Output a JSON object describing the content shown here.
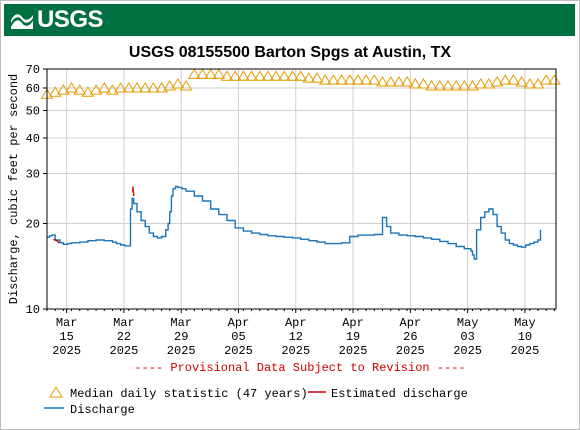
{
  "header": {
    "logo_text": "USGS"
  },
  "chart_data": {
    "type": "line",
    "title": "USGS 08155500 Barton Spgs at Austin, TX",
    "ylabel": "Discharge, cubic feet per second",
    "yscale": "log",
    "ylim": [
      10,
      70
    ],
    "yticks": [
      10,
      20,
      30,
      40,
      50,
      60,
      70
    ],
    "xlim": [
      0,
      62.2
    ],
    "x_ticks": [
      {
        "day": 2.4,
        "label": [
          "Mar",
          "15",
          "2025"
        ]
      },
      {
        "day": 9.4,
        "label": [
          "Mar",
          "22",
          "2025"
        ]
      },
      {
        "day": 16.4,
        "label": [
          "Mar",
          "29",
          "2025"
        ]
      },
      {
        "day": 23.4,
        "label": [
          "Apr",
          "05",
          "2025"
        ]
      },
      {
        "day": 30.4,
        "label": [
          "Apr",
          "12",
          "2025"
        ]
      },
      {
        "day": 37.4,
        "label": [
          "Apr",
          "19",
          "2025"
        ]
      },
      {
        "day": 44.4,
        "label": [
          "Apr",
          "26",
          "2025"
        ]
      },
      {
        "day": 51.4,
        "label": [
          "May",
          "03",
          "2025"
        ]
      },
      {
        "day": 58.4,
        "label": [
          "May",
          "10",
          "2025"
        ]
      }
    ],
    "provisional_note": "---- Provisional Data Subject to Revision ----",
    "grid": true,
    "legend": [
      {
        "label": "Median daily statistic (47 years)",
        "marker": "triangle",
        "color": "#e69a00"
      },
      {
        "label": "Estimated discharge",
        "marker": "line",
        "color": "#cc0000"
      },
      {
        "label": "Discharge",
        "marker": "line",
        "color": "#1c75b8"
      }
    ],
    "series": [
      {
        "name": "Median daily statistic (47 years)",
        "color": "#e69a00",
        "x": [
          0,
          1,
          2,
          3,
          4,
          5,
          6,
          7,
          8,
          9,
          10,
          11,
          12,
          13,
          14,
          15,
          16,
          17,
          18,
          19,
          20,
          21,
          22,
          23,
          24,
          25,
          26,
          27,
          28,
          29,
          30,
          31,
          32,
          33,
          34,
          35,
          36,
          37,
          38,
          39,
          40,
          41,
          42,
          43,
          44,
          45,
          46,
          47,
          48,
          49,
          50,
          51,
          52,
          53,
          54,
          55,
          56,
          57,
          58,
          59,
          60,
          61,
          62
        ],
        "y": [
          57,
          58,
          59,
          60,
          59,
          58,
          59,
          60,
          59,
          60,
          60,
          60,
          60,
          60,
          60,
          61,
          62,
          61,
          67,
          67,
          67,
          67,
          66,
          66,
          66,
          66,
          66,
          66,
          66,
          66,
          66,
          66,
          65,
          65,
          64,
          64,
          64,
          64,
          64,
          64,
          64,
          63,
          63,
          63,
          63,
          62,
          62,
          61,
          61,
          61,
          61,
          61,
          61,
          62,
          62,
          63,
          64,
          64,
          63,
          62,
          62,
          64,
          64
        ]
      },
      {
        "name": "Estimated discharge",
        "color": "#cc0000",
        "x": [
          0.8,
          1.2,
          1.5,
          10.5,
          10.5,
          10.6
        ],
        "y": [
          17.6,
          17.4,
          17.1,
          25.8,
          27.0,
          25.0
        ]
      },
      {
        "name": "Discharge",
        "color": "#1c75b8",
        "x": [
          0,
          0.3,
          0.6,
          1.0,
          1.6,
          2.0,
          2.5,
          3.0,
          4.0,
          5.0,
          6.0,
          7.0,
          8.0,
          8.5,
          9.0,
          9.5,
          10.0,
          10.2,
          10.4,
          10.6,
          11.0,
          11.5,
          12.0,
          12.5,
          13.0,
          13.5,
          14.0,
          14.5,
          14.8,
          15.0,
          15.2,
          15.4,
          15.7,
          16.0,
          16.5,
          17.0,
          18.0,
          19.0,
          20.0,
          21.0,
          22.0,
          23.0,
          24.0,
          25.0,
          26.0,
          27.0,
          28.0,
          29.0,
          30.0,
          31.0,
          32.0,
          33.0,
          34.0,
          35.0,
          36.0,
          37.0,
          38.0,
          39.0,
          40.0,
          41.0,
          41.5,
          42.0,
          43.0,
          44.0,
          45.0,
          46.0,
          47.0,
          48.0,
          49.0,
          50.0,
          51.0,
          51.8,
          52.0,
          52.2,
          52.5,
          53.0,
          53.5,
          54.0,
          54.5,
          55.0,
          55.5,
          56.0,
          56.5,
          57.0,
          57.5,
          58.0,
          58.5,
          59.0,
          59.5,
          60.0,
          60.3
        ],
        "y": [
          17.9,
          18.1,
          18.2,
          17.5,
          17.1,
          16.9,
          17.0,
          17.1,
          17.2,
          17.4,
          17.5,
          17.4,
          17.2,
          17.0,
          16.8,
          16.7,
          16.7,
          22.5,
          24.5,
          23.5,
          22.0,
          20.5,
          19.5,
          18.5,
          18.0,
          17.8,
          18.0,
          19.0,
          20.0,
          22.0,
          25.0,
          26.5,
          27.0,
          26.8,
          26.5,
          26.0,
          25.0,
          24.0,
          22.5,
          21.5,
          20.5,
          19.3,
          18.8,
          18.5,
          18.3,
          18.1,
          18.0,
          17.9,
          17.8,
          17.6,
          17.4,
          17.2,
          17.0,
          17.0,
          17.1,
          18.0,
          18.2,
          18.2,
          18.3,
          21.0,
          19.5,
          18.5,
          18.2,
          18.1,
          18.0,
          17.8,
          17.6,
          17.3,
          17.0,
          16.6,
          16.3,
          16.0,
          15.5,
          15.0,
          19.0,
          21.0,
          22.0,
          22.5,
          21.5,
          19.5,
          18.5,
          17.5,
          17.0,
          16.8,
          16.6,
          16.5,
          16.8,
          17.0,
          17.2,
          17.5,
          19.0
        ]
      }
    ]
  }
}
